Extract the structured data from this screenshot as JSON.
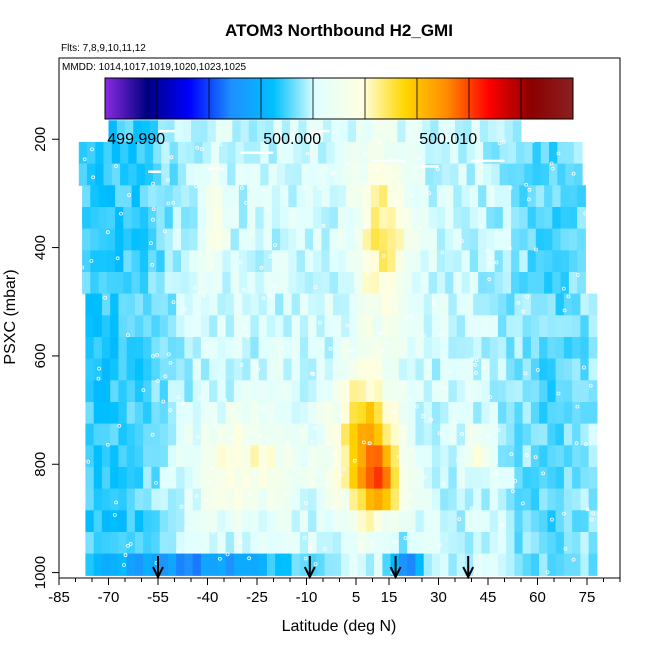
{
  "chart_data": {
    "type": "heatmap",
    "title": "ATOM3 Northbound H2_GMI",
    "subtitle_flights": "Flts: 7,8,9,10,11,12",
    "subtitle_dates": "MMDD: 1014,1017,1019,1020,1023,1025",
    "xlabel": "Latitude (deg N)",
    "ylabel": "PSXC (mbar)",
    "xlim": [
      -85,
      85
    ],
    "ylim": [
      1010,
      50
    ],
    "x_ticks": [
      "-85",
      "-70",
      "-55",
      "-40",
      "-25",
      "-10",
      "5",
      "15",
      "30",
      "45",
      "60",
      "75"
    ],
    "x_tick_values": [
      -85,
      -70,
      -55,
      -40,
      -25,
      -10,
      5,
      15,
      30,
      45,
      60,
      75
    ],
    "y_ticks": [
      "200",
      "400",
      "600",
      "800",
      "1000"
    ],
    "y_tick_values": [
      200,
      400,
      600,
      800,
      1000
    ],
    "colorbar": {
      "min": 499.988,
      "max": 500.018,
      "tick_labels": [
        "499.990",
        "500.000",
        "500.010"
      ],
      "tick_values": [
        499.99,
        500.0,
        500.01
      ],
      "colors": [
        "#8a2be2",
        "#000080",
        "#0000ff",
        "#1e90ff",
        "#00bfff",
        "#e0ffff",
        "#ffffe0",
        "#ffd700",
        "#ff8c00",
        "#ff0000",
        "#8b0000",
        "#8b2020"
      ]
    },
    "flight_markers_lat": [
      -55,
      -9,
      17,
      39
    ],
    "grid": false,
    "legend": "colorbar-top"
  }
}
